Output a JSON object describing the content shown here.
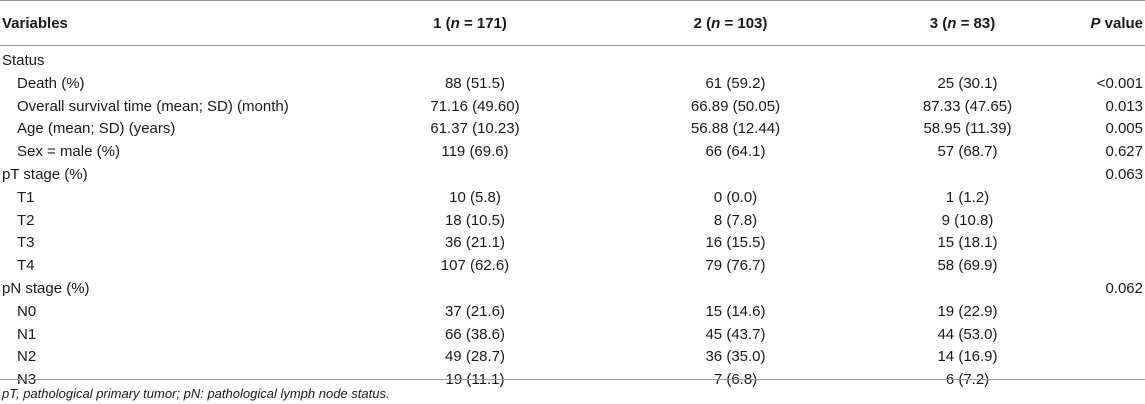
{
  "table": {
    "headers": {
      "variables": "Variables",
      "g1_num": "1 (",
      "g1_n": "n",
      "g1_rest": " = 171)",
      "g2_num": "2 (",
      "g2_n": "n",
      "g2_rest": " = 103)",
      "g3_num": "3 (",
      "g3_n": "n",
      "g3_rest": " = 83)",
      "p_italic": "P",
      "p_rest": " value"
    },
    "rows": [
      {
        "label": "Status",
        "g1": "",
        "g2": "",
        "g3": "",
        "p": ""
      },
      {
        "label": "Death (%)",
        "g1": "88 (51.5)",
        "g2": "61 (59.2)",
        "g3": "25 (30.1)",
        "p": "<0.001"
      },
      {
        "label": "Overall survival time (mean; SD) (month)",
        "g1": "71.16 (49.60)",
        "g2": "66.89 (50.05)",
        "g3": "87.33 (47.65)",
        "p": "0.013"
      },
      {
        "label": "Age (mean; SD) (years)",
        "g1": "61.37 (10.23)",
        "g2": "56.88 (12.44)",
        "g3": "58.95 (11.39)",
        "p": "0.005"
      },
      {
        "label": "Sex = male (%)",
        "g1": "119 (69.6)",
        "g2": "66 (64.1)",
        "g3": "57 (68.7)",
        "p": "0.627"
      },
      {
        "label": "pT stage (%)",
        "g1": "",
        "g2": "",
        "g3": "",
        "p": "0.063"
      },
      {
        "label": "T1",
        "g1": "10 (5.8)",
        "g2": "0 (0.0)",
        "g3": "1 (1.2)",
        "p": ""
      },
      {
        "label": "T2",
        "g1": "18 (10.5)",
        "g2": "8 (7.8)",
        "g3": "9 (10.8)",
        "p": ""
      },
      {
        "label": "T3",
        "g1": "36 (21.1)",
        "g2": "16 (15.5)",
        "g3": "15 (18.1)",
        "p": ""
      },
      {
        "label": "T4",
        "g1": "107 (62.6)",
        "g2": "79 (76.7)",
        "g3": "58 (69.9)",
        "p": ""
      },
      {
        "label": "pN stage (%)",
        "g1": "",
        "g2": "",
        "g3": "",
        "p": "0.062"
      },
      {
        "label": "N0",
        "g1": "37 (21.6)",
        "g2": "15 (14.6)",
        "g3": "19 (22.9)",
        "p": ""
      },
      {
        "label": "N1",
        "g1": "66 (38.6)",
        "g2": "45 (43.7)",
        "g3": "44 (53.0)",
        "p": ""
      },
      {
        "label": "N2",
        "g1": "49 (28.7)",
        "g2": "36 (35.0)",
        "g3": "14 (16.9)",
        "p": ""
      },
      {
        "label": "N3",
        "g1": "19 (11.1)",
        "g2": "7 (6.8)",
        "g3": "6 (7.2)",
        "p": ""
      }
    ]
  },
  "footnote": "pT, pathological primary tumor; pN: pathological lymph node status."
}
